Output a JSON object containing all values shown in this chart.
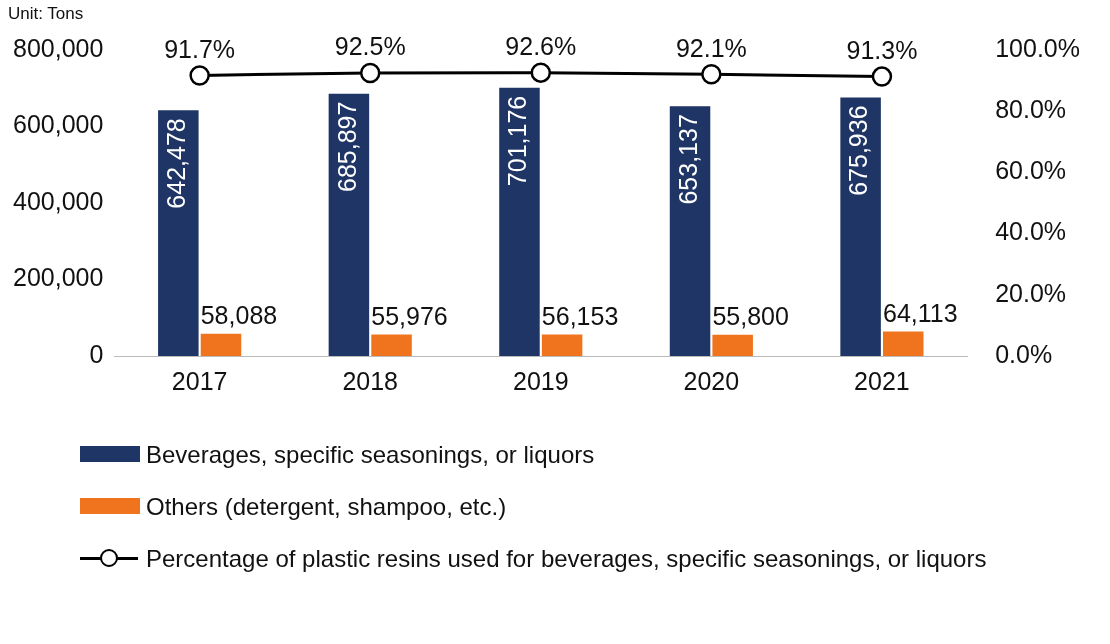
{
  "chart_data": {
    "type": "bar",
    "ylabel": "Unit: Tons",
    "categories": [
      "2017",
      "2018",
      "2019",
      "2020",
      "2021"
    ],
    "series": [
      {
        "name": "Beverages, specific seasonings, or liquors",
        "color": "#1f3566",
        "values": [
          642478,
          685897,
          701176,
          653137,
          675936
        ],
        "value_labels": [
          "642,478",
          "685,897",
          "701,176",
          "653,137",
          "675,936"
        ]
      },
      {
        "name": "Others (detergent, shampoo, etc.)",
        "color": "#f0731e",
        "values": [
          58088,
          55976,
          56153,
          55800,
          64113
        ],
        "value_labels": [
          "58,088",
          "55,976",
          "56,153",
          "55,800",
          "64,113"
        ]
      },
      {
        "name": "Percentage of plastic resins used for beverages, specific seasonings, or liquors",
        "type": "line",
        "axis": "y2",
        "color": "#000000",
        "marker": "circle",
        "values": [
          91.7,
          92.5,
          92.6,
          92.1,
          91.3
        ],
        "value_labels": [
          "91.7%",
          "92.5%",
          "92.6%",
          "92.1%",
          "91.3%"
        ]
      }
    ],
    "ylim": [
      0,
      800000
    ],
    "yticks": [
      {
        "value": 0,
        "label": "0"
      },
      {
        "value": 200000,
        "label": "200,000"
      },
      {
        "value": 400000,
        "label": "400,000"
      },
      {
        "value": 600000,
        "label": "600,000"
      },
      {
        "value": 800000,
        "label": "800,000"
      }
    ],
    "y2lim": [
      0,
      100
    ],
    "y2ticks": [
      {
        "value": 0,
        "label": "0.0%"
      },
      {
        "value": 20,
        "label": "20.0%"
      },
      {
        "value": 40,
        "label": "40.0%"
      },
      {
        "value": 60,
        "label": "60.0%"
      },
      {
        "value": 80,
        "label": "80.0%"
      },
      {
        "value": 100,
        "label": "100.0%"
      }
    ],
    "grid": false,
    "legend": "bottom"
  }
}
